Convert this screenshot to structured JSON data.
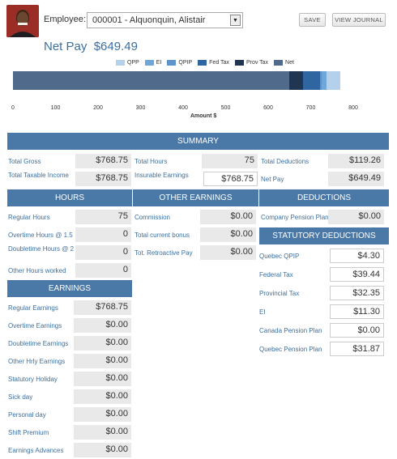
{
  "header": {
    "employee_label": "Employee:",
    "employee_value": "000001 - Alquonquin, Alistair",
    "save_label": "SAVE",
    "view_journal_label": "VIEW JOURNAL",
    "net_pay_label": "Net Pay",
    "net_pay_value": "$649.49"
  },
  "chart_data": {
    "type": "bar",
    "orientation": "horizontal-stacked",
    "series": [
      {
        "name": "Net",
        "values": [
          649.49
        ],
        "color": "#4f6a8b"
      },
      {
        "name": "Prov Tax",
        "values": [
          32.35
        ],
        "color": "#1f3552"
      },
      {
        "name": "Fed Tax",
        "values": [
          39.44
        ],
        "color": "#2f65a0"
      },
      {
        "name": "QPIP",
        "values": [
          4.3
        ],
        "color": "#5c94cc"
      },
      {
        "name": "EI",
        "values": [
          11.3
        ],
        "color": "#6fa7d8"
      },
      {
        "name": "QPP",
        "values": [
          31.87
        ],
        "color": "#b4d0ea"
      }
    ],
    "legend_order": [
      "QPP",
      "EI",
      "QPIP",
      "Fed Tax",
      "Prov Tax",
      "Net"
    ],
    "xlabel": "Amount $",
    "xlim": [
      0,
      800
    ],
    "ticks": [
      "0",
      "100",
      "200",
      "300",
      "400",
      "500",
      "600",
      "700",
      "800"
    ]
  },
  "summary": {
    "title": "SUMMARY",
    "total_gross_label": "Total Gross",
    "total_gross_value": "$768.75",
    "total_taxable_label": "Total Taxable Income",
    "total_taxable_value": "$768.75",
    "total_hours_label": "Total Hours",
    "total_hours_value": "75",
    "insurable_label": "Insurable Earnings",
    "insurable_value": "$768.75",
    "total_deductions_label": "Total Deductions",
    "total_deductions_value": "$119.26",
    "net_pay_label": "Net Pay",
    "net_pay_value": "$649.49"
  },
  "hours": {
    "title": "HOURS",
    "rows": [
      {
        "label": "Regular Hours",
        "value": "75"
      },
      {
        "label": "Overtime Hours @ 1.5",
        "value": "0"
      },
      {
        "label": "Doubletime Hours @ 2",
        "value": "0"
      },
      {
        "label": "Other Hours worked",
        "value": "0"
      }
    ]
  },
  "other_earnings": {
    "title": "OTHER EARNINGS",
    "rows": [
      {
        "label": "Commission",
        "value": "$0.00"
      },
      {
        "label": "Total current bonus",
        "value": "$0.00"
      },
      {
        "label": "Tot. Retroactive Pay",
        "value": "$0.00"
      }
    ]
  },
  "deductions": {
    "title": "DEDUCTIONS",
    "rows": [
      {
        "label": "Company Pension Plan",
        "value": "$0.00"
      }
    ]
  },
  "statutory": {
    "title": "STATUTORY DEDUCTIONS",
    "rows": [
      {
        "label": "Quebec QPIP",
        "value": "$4.30"
      },
      {
        "label": "Federal Tax",
        "value": "$39.44"
      },
      {
        "label": "Provincial Tax",
        "value": "$32.35"
      },
      {
        "label": "EI",
        "value": "$11.30"
      },
      {
        "label": "Canada Pension Plan",
        "value": "$0.00"
      },
      {
        "label": "Quebec Pension Plan",
        "value": "$31.87"
      }
    ]
  },
  "earnings": {
    "title": "EARNINGS",
    "rows": [
      {
        "label": "Regular Earnings",
        "value": "$768.75"
      },
      {
        "label": "Overtime Earnings",
        "value": "$0.00"
      },
      {
        "label": "Doubletime Earnings",
        "value": "$0.00"
      },
      {
        "label": "Other Hrly Earnings",
        "value": "$0.00"
      },
      {
        "label": "Statutory Holiday",
        "value": "$0.00"
      },
      {
        "label": "Sick day",
        "value": "$0.00"
      },
      {
        "label": "Personal day",
        "value": "$0.00"
      },
      {
        "label": "Shift Premium",
        "value": "$0.00"
      },
      {
        "label": "Earnings Advances",
        "value": "$0.00"
      }
    ]
  }
}
